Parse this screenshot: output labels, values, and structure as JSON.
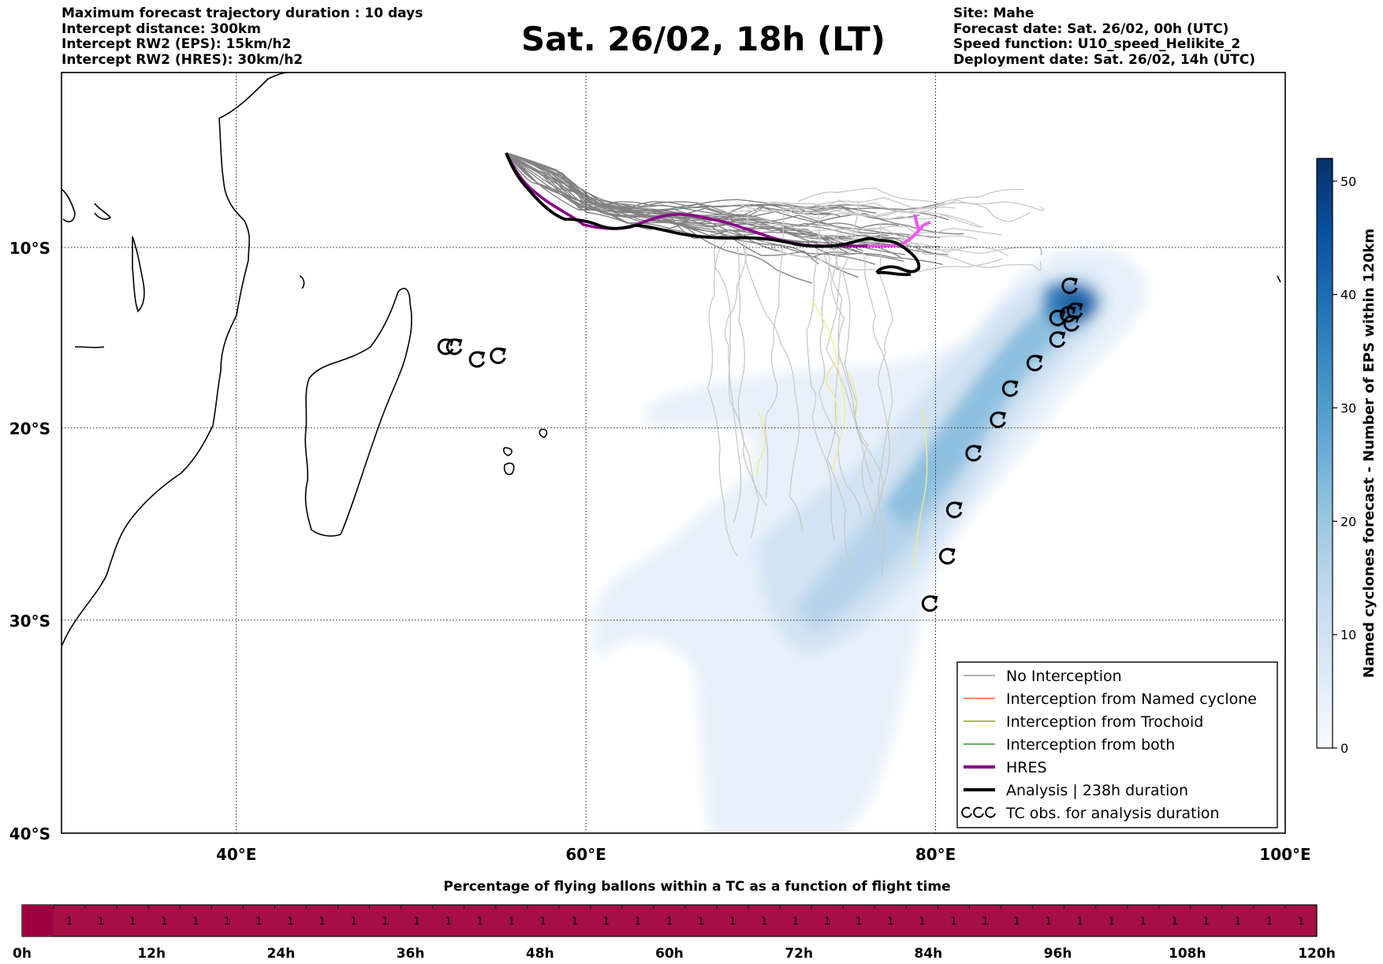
{
  "header": {
    "left_lines": [
      "Maximum forecast trajectory duration : 10 days",
      "Intercept distance: 300km",
      "Intercept RW2 (EPS):  15km/h2",
      "Intercept RW2 (HRES): 30km/h2"
    ],
    "title": "Sat. 26/02, 18h (LT)",
    "right_lines": [
      "Site: Mahe",
      "Forecast date: Sat. 26/02, 00h (UTC)",
      "Speed function: U10_speed_Helikite_2",
      "Deployment date: Sat. 26/02, 14h (UTC)"
    ]
  },
  "map": {
    "lon_range": [
      30,
      100
    ],
    "lat_range": [
      -40,
      0
    ],
    "lon_ticks": [
      {
        "value": 40,
        "label": "40°E"
      },
      {
        "value": 60,
        "label": "60°E"
      },
      {
        "value": 80,
        "label": "80°E"
      },
      {
        "value": 100,
        "label": "100°E"
      }
    ],
    "lat_ticks": [
      {
        "value": -10,
        "label": "10°S"
      },
      {
        "value": -20,
        "label": "20°S"
      },
      {
        "value": -30,
        "label": "30°S"
      },
      {
        "value": -40,
        "label": "40°S"
      }
    ],
    "grid": "dotted"
  },
  "legend": {
    "items": [
      {
        "label": "No Interception",
        "color": "#808080",
        "style": "line"
      },
      {
        "label": "Interception from Named cyclone",
        "color": "#ff4500",
        "style": "line"
      },
      {
        "label": "Interception from Trochoid",
        "color": "#808000",
        "style": "line"
      },
      {
        "label": "Interception from both",
        "color": "#008000",
        "style": "line"
      },
      {
        "label": "HRES",
        "color": "#8b008b",
        "style": "thick"
      },
      {
        "label": "Analysis | 238h duration",
        "color": "#000000",
        "style": "thick"
      },
      {
        "label": "TC obs. for analysis duration",
        "color": "#000000",
        "style": "symbol"
      }
    ]
  },
  "colorbar": {
    "label": "Named cyclones forecast - Number of EPS within 120km",
    "min": 0,
    "max": 52,
    "ticks": [
      0,
      10,
      20,
      30,
      40,
      50
    ],
    "colormap": "Blues"
  },
  "percentage_bar": {
    "title": "Percentage of flying ballons within a TC as a function of flight time",
    "values": [
      "1",
      "1",
      "1",
      "1",
      "1",
      "1",
      "1",
      "1",
      "1",
      "1",
      "1",
      "1",
      "1",
      "1",
      "1",
      "1",
      "1",
      "1",
      "1",
      "1",
      "1",
      "1",
      "1",
      "1",
      "1",
      "1",
      "1",
      "1",
      "1",
      "1",
      "1",
      "1",
      "1",
      "1",
      "1",
      "1",
      "1",
      "1",
      "1",
      "1"
    ],
    "fill_color": "#a50f45",
    "time_labels": [
      "0h",
      "12h",
      "24h",
      "36h",
      "48h",
      "60h",
      "72h",
      "84h",
      "96h",
      "108h",
      "120h"
    ]
  },
  "tc_obs": [
    {
      "lon": 52.0,
      "lat": -15.6
    },
    {
      "lon": 52.5,
      "lat": -15.6
    },
    {
      "lon": 53.8,
      "lat": -16.3
    },
    {
      "lon": 55.0,
      "lat": -16.1
    },
    {
      "lon": 87.7,
      "lat": -12.2
    },
    {
      "lon": 87.0,
      "lat": -14.0
    },
    {
      "lon": 87.6,
      "lat": -13.8
    },
    {
      "lon": 88.0,
      "lat": -13.6
    },
    {
      "lon": 87.8,
      "lat": -14.3
    },
    {
      "lon": 87.0,
      "lat": -15.2
    },
    {
      "lon": 85.7,
      "lat": -16.5
    },
    {
      "lon": 84.3,
      "lat": -17.9
    },
    {
      "lon": 83.6,
      "lat": -19.6
    },
    {
      "lon": 82.2,
      "lat": -21.4
    },
    {
      "lon": 81.1,
      "lat": -24.4
    },
    {
      "lon": 80.7,
      "lat": -26.8
    },
    {
      "lon": 79.7,
      "lat": -29.2
    }
  ]
}
